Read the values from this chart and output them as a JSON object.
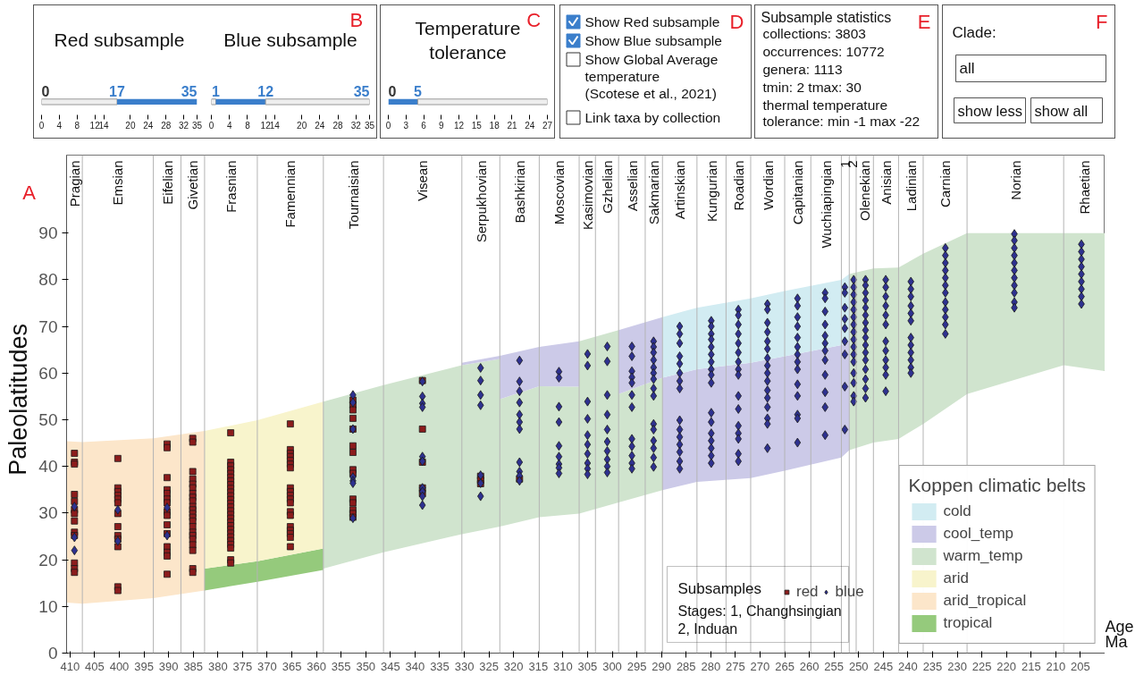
{
  "chart_data": [
    {
      "type": "bar",
      "orientation": "horizontal",
      "title": "Red subsample",
      "stacked": true,
      "categories": [
        null
      ],
      "series": [
        {
          "color": "#eeeeee",
          "values": [
            17
          ]
        },
        {
          "color": "#3a7ecb",
          "values": [
            18
          ]
        }
      ],
      "xlim": [
        0,
        35
      ],
      "xticks": [
        0,
        4,
        8,
        12,
        14,
        20,
        24,
        28,
        32,
        35
      ],
      "tick_labels": "x",
      "annotations": [
        "0",
        "17",
        "35"
      ]
    },
    {
      "type": "bar",
      "orientation": "horizontal",
      "title": "Blue subsample",
      "subtitle": "B",
      "stacked": true,
      "categories": [
        null
      ],
      "series": [
        {
          "color": "#eeeeee",
          "values": [
            1
          ]
        },
        {
          "color": "#3a7ecb",
          "values": [
            11
          ]
        },
        {
          "color": "#eeeeee",
          "values": [
            23
          ]
        }
      ],
      "xlim": [
        0,
        35
      ],
      "xticks": [
        0,
        4,
        8,
        12,
        14,
        20,
        24,
        28,
        32,
        35
      ],
      "tick_labels": "x",
      "annotations": [
        null,
        "1",
        "12",
        "35"
      ]
    },
    {
      "type": "bar",
      "orientation": "horizontal",
      "title": "Temperature\ntolerance",
      "subtitle": "C",
      "stacked": true,
      "categories": [
        null
      ],
      "series": [
        {
          "color": "#3a7ecb",
          "values": [
            5
          ]
        },
        {
          "color": "#eeeeee",
          "values": [
            22
          ]
        }
      ],
      "xlim": [
        0,
        27
      ],
      "xticks": [
        0,
        3,
        6,
        9,
        12,
        15,
        18,
        21,
        24,
        27
      ],
      "tick_labels": "x",
      "annotations": [
        "0",
        "5"
      ]
    },
    {
      "type": "other",
      "subtitle": "D",
      "categories": [
        "Show Red subsample",
        "Show Blue subsample",
        "Show Global Average\ntemperature\n(Scotese et al., 2021)",
        "Link taxa by collection"
      ],
      "colors": [
        "#3a7ecb",
        "#3a7ecb",
        "#ffffff",
        "#ffffff"
      ]
    },
    {
      "type": "other",
      "subtitle": "E",
      "title": "Subsample statistics",
      "annotations": [
        "collections: 3803",
        "occurrences: 10772",
        "genera: 1113",
        "tmin: 2     tmax: 30",
        "thermal temperature\ntolerance: min -1 max -22"
      ]
    },
    {
      "type": "other",
      "subtitle": "F",
      "title": "Clade:",
      "annotations": [
        "all"
      ],
      "categories": [
        "show less",
        "show all"
      ]
    },
    {
      "type": "scatter",
      "subtitle": "A",
      "stacked": true,
      "x": [
        410.7,
        407.5,
        393.1,
        382.7,
        382.7,
        372,
        358.6,
        358.6,
        346.4,
        330.5,
        322.8,
        322.8,
        314.8,
        306.7,
        306.7,
        298.7,
        298.7,
        289.8,
        289.8,
        282.8,
        271.9,
        265,
        253.5,
        251.9,
        251.9,
        247,
        241.9,
        236.9,
        228,
        208.4,
        200
      ],
      "ylabel": "Paleolatitudes",
      "xlabel": "Age\nMa",
      "xlim": [
        410.7,
        200
      ],
      "ylim": [
        0,
        106.7
      ],
      "xticks": [
        410,
        405,
        400,
        395,
        390,
        385,
        380,
        375,
        370,
        365,
        360,
        355,
        350,
        345,
        340,
        335,
        330,
        325,
        320,
        315,
        310,
        305,
        300,
        295,
        290,
        285,
        280,
        275,
        270,
        265,
        260,
        255,
        250,
        245,
        240,
        235,
        230,
        225,
        220,
        215,
        210,
        205
      ],
      "yticks": [
        0,
        10,
        20,
        30,
        40,
        50,
        60,
        70,
        80,
        90
      ],
      "grid": false,
      "legend": "bottom right",
      "legend_title": "Koppen climatic belts",
      "series": [
        {
          "type": "area",
          "color": "#ffffff",
          "values": [
            10.8,
            10.6,
            11.8,
            13.4,
            13.4,
            15.3,
            17.8,
            18.1,
            21.6,
            25.5,
            27.1,
            27.1,
            29.1,
            29.9,
            29.9,
            32.3,
            32.3,
            34.9,
            34.9,
            36.7,
            37.5,
            39.1,
            41.9,
            43.5,
            43.5,
            45.1,
            45.9,
            49.1,
            55.5,
            61.7,
            60.4
          ]
        },
        {
          "type": "area",
          "name": "tropical",
          "color": "#95ca7c",
          "values": [
            null,
            null,
            null,
            null,
            4.7,
            4.4,
            4.6,
            null,
            null,
            null,
            null,
            null,
            null,
            null,
            null,
            null,
            null,
            null,
            null,
            null,
            null,
            null,
            null,
            null,
            null,
            null,
            null,
            null,
            null,
            null,
            null
          ]
        },
        {
          "type": "area",
          "name": "arid_tropical",
          "color": "#fce6ca",
          "values": [
            34.6,
            34.6,
            34.2,
            34.2,
            null,
            null,
            null,
            null,
            null,
            null,
            null,
            null,
            null,
            null,
            null,
            null,
            null,
            null,
            null,
            null,
            null,
            null,
            null,
            null,
            null,
            null,
            null,
            null,
            null,
            null,
            null
          ]
        },
        {
          "type": "area",
          "name": "arid",
          "color": "#f8f4cc",
          "values": [
            null,
            null,
            null,
            null,
            29.5,
            30.2,
            31.5,
            null,
            null,
            null,
            null,
            null,
            null,
            null,
            null,
            null,
            null,
            null,
            null,
            null,
            null,
            null,
            null,
            null,
            null,
            null,
            null,
            null,
            null,
            null,
            null
          ]
        },
        {
          "type": "area",
          "name": "warm_temp",
          "color": "#d0e4ce",
          "values": [
            null,
            null,
            null,
            null,
            null,
            null,
            null,
            35.8,
            35.8,
            36.2,
            35.9,
            27.3,
            28.1,
            27.2,
            36.9,
            36.9,
            23.2,
            24.1,
            null,
            null,
            null,
            null,
            null,
            null,
            37.7,
            37.3,
            36.7,
            36.5,
            34.5,
            28.3,
            29.6
          ]
        },
        {
          "type": "area",
          "name": "cool_temp",
          "color": "#cccae8",
          "values": [
            null,
            null,
            null,
            null,
            null,
            null,
            null,
            null,
            null,
            0.5,
            0.7,
            9.3,
            8.4,
            9.7,
            null,
            null,
            13.7,
            13,
            24.1,
            24.1,
            24.7,
            24.5,
            24.1,
            23.3,
            null,
            null,
            null,
            null,
            null,
            null,
            null
          ]
        },
        {
          "type": "area",
          "name": "cold",
          "color": "#d2ecf2",
          "values": [
            null,
            null,
            null,
            null,
            null,
            null,
            null,
            null,
            null,
            null,
            null,
            null,
            null,
            null,
            null,
            null,
            null,
            null,
            13,
            13.2,
            13.8,
            14,
            14,
            14.4,
            null,
            null,
            null,
            null,
            null,
            null,
            null
          ]
        },
        {
          "type": "scatter",
          "name": "red",
          "color": "#8b1c1c",
          "marker": "square",
          "x": [
            409.1,
            409.1,
            409.1,
            409.1,
            409.1,
            409.1,
            409.1,
            409.1,
            409.1,
            409.1,
            409.1,
            409.1,
            409.1,
            400.3,
            400.3,
            400.3,
            400.3,
            400.3,
            400.3,
            400.3,
            400.3,
            400.3,
            400.3,
            400.3,
            400.3,
            400.3,
            390.3,
            390.3,
            390.3,
            390.3,
            390.3,
            390.3,
            390.3,
            390.3,
            390.3,
            390.3,
            390.3,
            390.3,
            390.3,
            390.3,
            390.3,
            385.1,
            385.1,
            385.1,
            385.1,
            385.1,
            385.1,
            385.1,
            385.1,
            385.1,
            385.1,
            385.1,
            385.1,
            385.1,
            385.1,
            385.1,
            385.1,
            385.1,
            385.1,
            385.1,
            385.1,
            385.1,
            385.1,
            377.4,
            377.4,
            377.4,
            377.4,
            377.4,
            377.4,
            377.4,
            377.4,
            377.4,
            377.4,
            377.4,
            377.4,
            377.4,
            377.4,
            377.4,
            377.4,
            377.4,
            377.4,
            377.4,
            377.4,
            377.4,
            377.4,
            377.4,
            377.4,
            377.4,
            377.4,
            377.4,
            365.3,
            365.3,
            365.3,
            365.3,
            365.3,
            365.3,
            365.3,
            365.3,
            365.3,
            365.3,
            365.3,
            365.3,
            365.3,
            365.3,
            365.3,
            365.3,
            365.3,
            365.3,
            365.3,
            352.6,
            352.6,
            352.6,
            352.6,
            352.6,
            352.6,
            352.6,
            352.6,
            352.6,
            352.6,
            352.6,
            352.6,
            352.6,
            352.6,
            338.5,
            338.5,
            338.5,
            338.5,
            338.5,
            326.7,
            326.7,
            326.7,
            318.8
          ],
          "values": [
            42.8,
            40.9,
            40.5,
            34,
            32.5,
            30.7,
            29.9,
            28.3,
            25.9,
            25.2,
            19.3,
            18.1,
            17.3,
            41.7,
            35.4,
            34.6,
            33.8,
            33,
            32.2,
            29.9,
            27.1,
            25.2,
            24.4,
            22.8,
            14.2,
            13.4,
            44.8,
            44,
            37.6,
            35,
            34.2,
            33,
            32.2,
            30.3,
            29.5,
            27.5,
            25.6,
            22.8,
            21.6,
            20.8,
            16.9,
            46,
            45.2,
            38.9,
            37.3,
            36.2,
            35.4,
            34.2,
            33.4,
            32.6,
            31.4,
            30.7,
            29.9,
            29.1,
            28.3,
            27.1,
            25.9,
            25.2,
            24.4,
            23.2,
            22,
            18.1,
            17.3,
            47.2,
            40.9,
            40.1,
            39.3,
            38.5,
            37.7,
            36.9,
            36.1,
            35.3,
            34.5,
            33.7,
            32.9,
            32.1,
            31.3,
            30.5,
            29.7,
            28.9,
            28.1,
            27.3,
            26.5,
            25.7,
            24.9,
            24.1,
            23.3,
            22.5,
            20,
            19.3,
            49.1,
            43.6,
            42.8,
            42.1,
            41.3,
            40.5,
            39.7,
            35.4,
            34.6,
            33.8,
            33,
            32.2,
            30.3,
            29.5,
            27.1,
            26.3,
            25.6,
            24.8,
            22.8,
            54.2,
            53.2,
            52.1,
            50.3,
            48,
            44.4,
            43,
            39.3,
            38.5,
            33,
            32.2,
            30.7,
            29.9,
            29.1,
            58.4,
            48,
            40.9,
            35.4,
            34.2,
            37.9,
            37.1,
            36.3,
            37.3
          ]
        },
        {
          "type": "scatter",
          "name": "blue",
          "color": "#2e3190",
          "marker": "diamond",
          "x": [
            409.1,
            409.1,
            409.1,
            400.3,
            400.3,
            390.3,
            390.3,
            352.6,
            352.6,
            352.6,
            352.6,
            352.6,
            352.6,
            352.6,
            338.5,
            338.5,
            338.5,
            338.5,
            338.5,
            338.5,
            338.5,
            338.5,
            338.5,
            338.5,
            326.7,
            326.7,
            326.7,
            326.7,
            326.7,
            326.7,
            326.7,
            318.8,
            318.8,
            318.8,
            318.8,
            318.8,
            318.8,
            318.8,
            318.8,
            318.8,
            318.8,
            318.8,
            310.8,
            310.8,
            310.8,
            310.8,
            310.8,
            310.8,
            310.8,
            310.8,
            310.8,
            305,
            305,
            305,
            305,
            305,
            305,
            305,
            305,
            305,
            305,
            301,
            301,
            301,
            301,
            301,
            301,
            301,
            301,
            301,
            301,
            296,
            296,
            296,
            296,
            296,
            296,
            296,
            296,
            296,
            296,
            296,
            296,
            291.6,
            291.6,
            291.6,
            291.6,
            291.6,
            291.6,
            291.6,
            291.6,
            291.6,
            291.6,
            291.6,
            291.6,
            291.6,
            291.6,
            291.6,
            286.3,
            286.3,
            286.3,
            286.3,
            286.3,
            286.3,
            286.3,
            286.3,
            286.3,
            286.3,
            286.3,
            286.3,
            286.3,
            286.3,
            286.3,
            279.9,
            279.9,
            279.9,
            279.9,
            279.9,
            279.9,
            279.9,
            279.9,
            279.9,
            279.9,
            279.9,
            279.9,
            279.9,
            279.9,
            279.9,
            279.9,
            279.9,
            274.4,
            274.4,
            274.4,
            274.4,
            274.4,
            274.4,
            274.4,
            274.4,
            274.4,
            274.4,
            274.4,
            274.4,
            274.4,
            274.4,
            274.4,
            274.4,
            268.5,
            268.5,
            268.5,
            268.5,
            268.5,
            268.5,
            268.5,
            268.5,
            268.5,
            268.5,
            268.5,
            268.5,
            268.5,
            268.5,
            268.5,
            268.5,
            262.4,
            262.4,
            262.4,
            262.4,
            262.4,
            262.4,
            262.4,
            262.4,
            262.4,
            262.4,
            262.4,
            262.4,
            262.4,
            262.4,
            256.8,
            256.8,
            256.8,
            256.8,
            256.8,
            256.8,
            256.8,
            256.8,
            256.8,
            256.8,
            256.8,
            256.8,
            252.8,
            252.8,
            252.8,
            252.8,
            252.8,
            252.8,
            252.8,
            252.8,
            252.8,
            251,
            251,
            251,
            251,
            251,
            251,
            251,
            251,
            251,
            251,
            251,
            251,
            251,
            251,
            251,
            251,
            248.6,
            248.6,
            248.6,
            248.6,
            248.6,
            248.6,
            248.6,
            248.6,
            248.6,
            248.6,
            248.6,
            248.6,
            248.6,
            248.6,
            248.6,
            248.6,
            244.5,
            244.5,
            244.5,
            244.5,
            244.5,
            244.5,
            244.5,
            244.5,
            244.5,
            244.5,
            244.5,
            244.5,
            239.4,
            239.4,
            239.4,
            239.4,
            239.4,
            239.4,
            239.4,
            239.4,
            239.4,
            239.4,
            239.4,
            239.4,
            232.4,
            232.4,
            232.4,
            232.4,
            232.4,
            232.4,
            232.4,
            232.4,
            232.4,
            232.4,
            232.4,
            232.4,
            218.4,
            218.4,
            218.4,
            218.4,
            218.4,
            218.4,
            218.4,
            218.4,
            218.4,
            218.4,
            218.4,
            204.8,
            204.8,
            204.8,
            204.8,
            204.8,
            204.8,
            204.8,
            204.8,
            204.8
          ],
          "values": [
            31.4,
            24.8,
            22,
            30.7,
            24,
            31.2,
            25.2,
            55.3,
            53.7,
            48,
            37.7,
            36.9,
            36.4,
            28.9,
            58.2,
            55,
            53.5,
            52.7,
            42.1,
            41.1,
            35.4,
            34.6,
            33.6,
            31.7,
            61.1,
            58.4,
            55.3,
            53.1,
            38.1,
            36.4,
            33.6,
            62.7,
            58.2,
            56.1,
            53.7,
            51.1,
            49.5,
            48,
            40.9,
            38.9,
            38,
            36.9,
            60.3,
            59,
            52.8,
            49.5,
            44.4,
            42.1,
            40.5,
            39.7,
            38.5,
            64.1,
            61.6,
            53.9,
            50.2,
            46.7,
            44.7,
            42.7,
            40.7,
            39.5,
            38.3,
            65.7,
            62.5,
            55.3,
            51.1,
            47.9,
            45.3,
            43.3,
            41.5,
            40,
            38.7,
            65.7,
            63.6,
            60.4,
            59.1,
            57.9,
            55.3,
            52.7,
            45.9,
            44.3,
            42.3,
            40.7,
            39.5,
            66.8,
            65.6,
            64.4,
            62.8,
            61.2,
            60,
            58.7,
            56.7,
            55.1,
            49.1,
            47.9,
            45.5,
            43.9,
            41.9,
            39.9,
            70,
            68.4,
            66.4,
            63.6,
            62,
            60,
            58.3,
            56.7,
            49.9,
            47.9,
            46.3,
            44.7,
            43.1,
            41.1,
            39.5,
            71.2,
            70,
            68.4,
            67.2,
            65.6,
            64,
            62.4,
            60.8,
            59.6,
            57.9,
            51.5,
            49.5,
            47.1,
            45.5,
            43.9,
            42.3,
            40.7,
            73.6,
            72.4,
            70.4,
            68.4,
            66.4,
            64.4,
            62.4,
            60.8,
            59.6,
            55.1,
            52.3,
            48.7,
            47.1,
            45.9,
            42.7,
            41.1,
            74.8,
            73.6,
            70.8,
            68.8,
            66.8,
            65.2,
            63.2,
            61.6,
            60,
            58.3,
            56.3,
            54.7,
            52.7,
            50.3,
            49.1,
            43.9,
            76,
            74.4,
            72,
            70,
            67.6,
            65.6,
            64,
            62.4,
            60.8,
            57.6,
            55.1,
            51.1,
            50.3,
            45.1,
            77.2,
            76,
            73.2,
            70.4,
            68,
            66.4,
            64.8,
            62.8,
            59.6,
            55.9,
            52.7,
            46.7,
            78.4,
            77.2,
            74,
            71.6,
            69.6,
            66.8,
            64,
            57.1,
            47.9,
            80,
            78.4,
            76.8,
            75.2,
            73.6,
            72,
            70.4,
            68.8,
            67.2,
            65.6,
            64,
            62.4,
            60,
            57.9,
            55.1,
            53.9,
            80,
            78.8,
            77.2,
            75.6,
            74,
            72.4,
            70.8,
            69.2,
            67.6,
            66,
            64.4,
            62.8,
            60.8,
            58.7,
            56.7,
            54.7,
            80,
            78.4,
            76.4,
            74.4,
            72.4,
            70.4,
            66.8,
            64.8,
            62.8,
            61.2,
            59.6,
            56.1,
            79.6,
            78,
            76.4,
            74.4,
            72.8,
            71.2,
            67.6,
            66,
            64.4,
            62.8,
            61.2,
            60,
            86.8,
            85.2,
            83.6,
            82,
            80.4,
            78.8,
            77.2,
            75.2,
            73.6,
            72,
            70.4,
            68.4,
            89.8,
            88.4,
            86.8,
            85.2,
            83.6,
            82,
            80.4,
            78.8,
            77.2,
            75.2,
            74,
            87.6,
            86,
            84.4,
            82.8,
            81.2,
            79.6,
            78,
            76.4,
            74.8
          ]
        }
      ],
      "ref_lines": [
        {
          "axis": "x",
          "value": 407.5,
          "color": "#b4b4b4"
        },
        {
          "axis": "x",
          "value": 393.1,
          "color": "#b4b4b4"
        },
        {
          "axis": "x",
          "value": 387.5,
          "color": "#b4b4b4"
        },
        {
          "axis": "x",
          "value": 382.7,
          "color": "#b4b4b4"
        },
        {
          "axis": "x",
          "value": 372,
          "color": "#b4b4b4"
        },
        {
          "axis": "x",
          "value": 358.6,
          "color": "#b4b4b4"
        },
        {
          "axis": "x",
          "value": 346.4,
          "color": "#b4b4b4"
        },
        {
          "axis": "x",
          "value": 330.5,
          "color": "#b4b4b4"
        },
        {
          "axis": "x",
          "value": 322.8,
          "color": "#b4b4b4"
        },
        {
          "axis": "x",
          "value": 314.8,
          "color": "#b4b4b4"
        },
        {
          "axis": "x",
          "value": 306.7,
          "color": "#b4b4b4"
        },
        {
          "axis": "x",
          "value": 303.4,
          "color": "#b4b4b4"
        },
        {
          "axis": "x",
          "value": 298.7,
          "color": "#b4b4b4"
        },
        {
          "axis": "x",
          "value": 293.3,
          "color": "#b4b4b4"
        },
        {
          "axis": "x",
          "value": 289.8,
          "color": "#b4b4b4"
        },
        {
          "axis": "x",
          "value": 282.8,
          "color": "#b4b4b4"
        },
        {
          "axis": "x",
          "value": 276.9,
          "color": "#b4b4b4"
        },
        {
          "axis": "x",
          "value": 271.9,
          "color": "#b4b4b4"
        },
        {
          "axis": "x",
          "value": 265,
          "color": "#b4b4b4"
        },
        {
          "axis": "x",
          "value": 259.7,
          "color": "#b4b4b4"
        },
        {
          "axis": "x",
          "value": 253.5,
          "color": "#b4b4b4"
        },
        {
          "axis": "x",
          "value": 251.9,
          "color": "#b4b4b4"
        },
        {
          "axis": "x",
          "value": 250.5,
          "color": "#b4b4b4"
        },
        {
          "axis": "x",
          "value": 247,
          "color": "#b4b4b4"
        },
        {
          "axis": "x",
          "value": 241.9,
          "color": "#b4b4b4"
        },
        {
          "axis": "x",
          "value": 236.9,
          "color": "#b4b4b4"
        },
        {
          "axis": "x",
          "value": 228,
          "color": "#b4b4b4"
        },
        {
          "axis": "x",
          "value": 208.4,
          "color": "#b4b4b4"
        }
      ],
      "annotations": [
        "Subsamples",
        "Stages: 1, Changhsingian\n         2, Induan",
        "Pragian",
        "Emsian",
        "Eifelian",
        "Givetian",
        "Frasnian",
        "Famennian",
        "Tournaisian",
        "Visean",
        "Serpukhovian",
        "Bashkirian",
        "Moscovian",
        "Kasimovian",
        "Gzhelian",
        "Asselian",
        "Sakmarian",
        "Artinskian",
        "Kungurian",
        "Roadian",
        "Wordian",
        "Capitanian",
        "Wuchiapingian",
        "1",
        "2",
        "Olenekian",
        "Anisian",
        "Ladinian",
        "Carnian",
        "Norian",
        "Rhaetian"
      ]
    }
  ]
}
